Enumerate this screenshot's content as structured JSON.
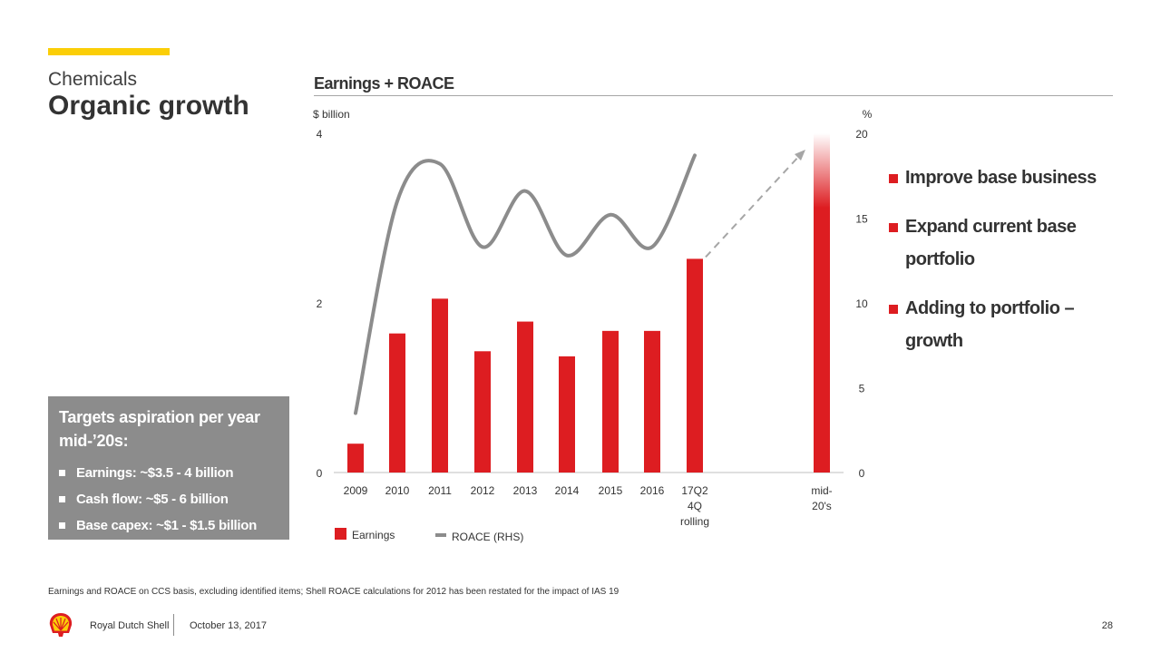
{
  "header": {
    "section": "Chemicals",
    "title": "Organic growth"
  },
  "targets": {
    "heading_line1": "Targets aspiration per year",
    "heading_line2": "mid-’20s:",
    "items": [
      "Earnings: ~$3.5 - 4 billion",
      "Cash flow: ~$5 - 6 billion",
      "Base capex: ~$1 - $1.5 billion"
    ]
  },
  "right_bullets": [
    "Improve base business",
    "Expand current base portfolio",
    "Adding to portfolio – growth"
  ],
  "footnote": "Earnings and ROACE on CCS basis, excluding identified items; Shell ROACE calculations for 2012 has been restated for the impact of IAS 19",
  "footer": {
    "company": "Royal Dutch Shell",
    "date": "October 13, 2017",
    "page": "28"
  },
  "colors": {
    "accent_yellow": "#FBCE07",
    "shell_red": "#DD1D21",
    "roace_gray": "#8c8c8c",
    "box_gray": "#8c8c8c"
  },
  "chart_data": {
    "type": "bar",
    "title": "Earnings + ROACE",
    "y_left_unit": "$ billion",
    "y_right_unit": "%",
    "y_left_range": [
      0,
      4
    ],
    "y_right_range": [
      0,
      20
    ],
    "y_left_ticks": [
      "0",
      "2",
      "4"
    ],
    "y_right_ticks": [
      "0",
      "5",
      "10",
      "15",
      "20"
    ],
    "categories": [
      [
        "2009"
      ],
      [
        "2010"
      ],
      [
        "2011"
      ],
      [
        "2012"
      ],
      [
        "2013"
      ],
      [
        "2014"
      ],
      [
        "2015"
      ],
      [
        "2016"
      ],
      [
        "17Q2",
        "4Q",
        "rolling"
      ],
      [
        "mid-",
        "20's"
      ]
    ],
    "series": [
      {
        "name": "Earnings",
        "axis": "left",
        "kind": "bar",
        "values": [
          0.34,
          1.64,
          2.05,
          1.43,
          1.78,
          1.37,
          1.67,
          1.67,
          2.52,
          3.75
        ],
        "last_value_range": [
          3.5,
          4.0
        ]
      },
      {
        "name": "ROACE (RHS)",
        "axis": "right",
        "kind": "line",
        "values": [
          3.5,
          16.0,
          18.2,
          13.3,
          16.6,
          12.8,
          15.2,
          13.3,
          18.7,
          null
        ]
      }
    ],
    "legend_position": "bottom",
    "grid": false
  }
}
